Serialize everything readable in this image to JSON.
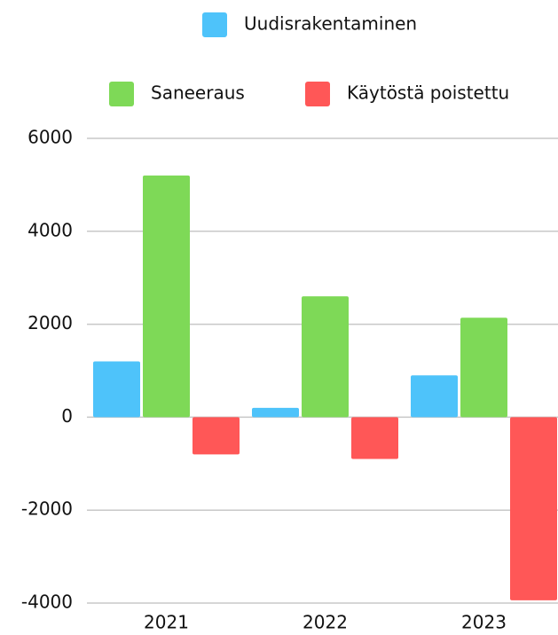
{
  "chart_data": {
    "type": "bar",
    "categories": [
      "2021",
      "2022",
      "2023"
    ],
    "series": [
      {
        "name": "Uudisrakentaminen",
        "color": "#4ec3fa",
        "values": [
          1200,
          200,
          900
        ]
      },
      {
        "name": "Saneeraus",
        "color": "#7ed957",
        "values": [
          5200,
          2600,
          2140
        ]
      },
      {
        "name": "Käytöstä poistettu",
        "color": "#ff5757",
        "values": [
          -800,
          -900,
          -3940
        ]
      }
    ],
    "ylim": [
      -4000,
      6000
    ],
    "yticks": [
      -4000,
      -2000,
      0,
      2000,
      4000,
      6000
    ],
    "grid": true
  }
}
